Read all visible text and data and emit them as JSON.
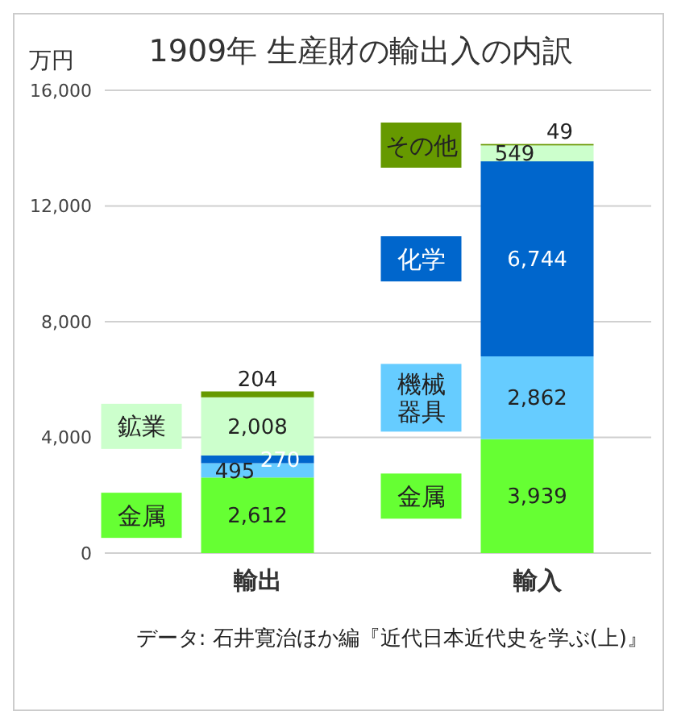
{
  "chart_data": {
    "type": "bar",
    "title": "1909年 生産財の輸出入の内訳",
    "ylabel": "万円",
    "categories": [
      "輸出",
      "輸入"
    ],
    "stacked": true,
    "ylim": [
      0,
      16000
    ],
    "yticks": [
      {
        "value": 0,
        "label": "0"
      },
      {
        "value": 4000,
        "label": "4,000"
      },
      {
        "value": 8000,
        "label": "8,000"
      },
      {
        "value": 12000,
        "label": "12,000"
      },
      {
        "value": 16000,
        "label": "16,000"
      }
    ],
    "grid": "y",
    "legend": false,
    "series": [
      {
        "name": "金属",
        "color": "#66ff33",
        "values": [
          2612,
          3939
        ],
        "value_labels": [
          "2,612",
          "3,939"
        ]
      },
      {
        "name": "機械器具",
        "color": "#66ccff",
        "values": [
          495,
          2862
        ],
        "value_labels": [
          "495",
          "2,862"
        ]
      },
      {
        "name": "化学",
        "color": "#0066cc",
        "values": [
          270,
          6744
        ],
        "value_labels": [
          "270",
          "6,744"
        ]
      },
      {
        "name": "鉱業",
        "color": "#ccffcc",
        "values": [
          2008,
          549
        ],
        "value_labels": [
          "2,008",
          "549"
        ]
      },
      {
        "name": "その他",
        "color": "#669900",
        "values": [
          204,
          49
        ],
        "value_labels": [
          "204",
          "49"
        ]
      }
    ],
    "annotations": [
      "データ: 石井寛治ほか編『近代日本近代史を学ぶ(上)』"
    ]
  }
}
